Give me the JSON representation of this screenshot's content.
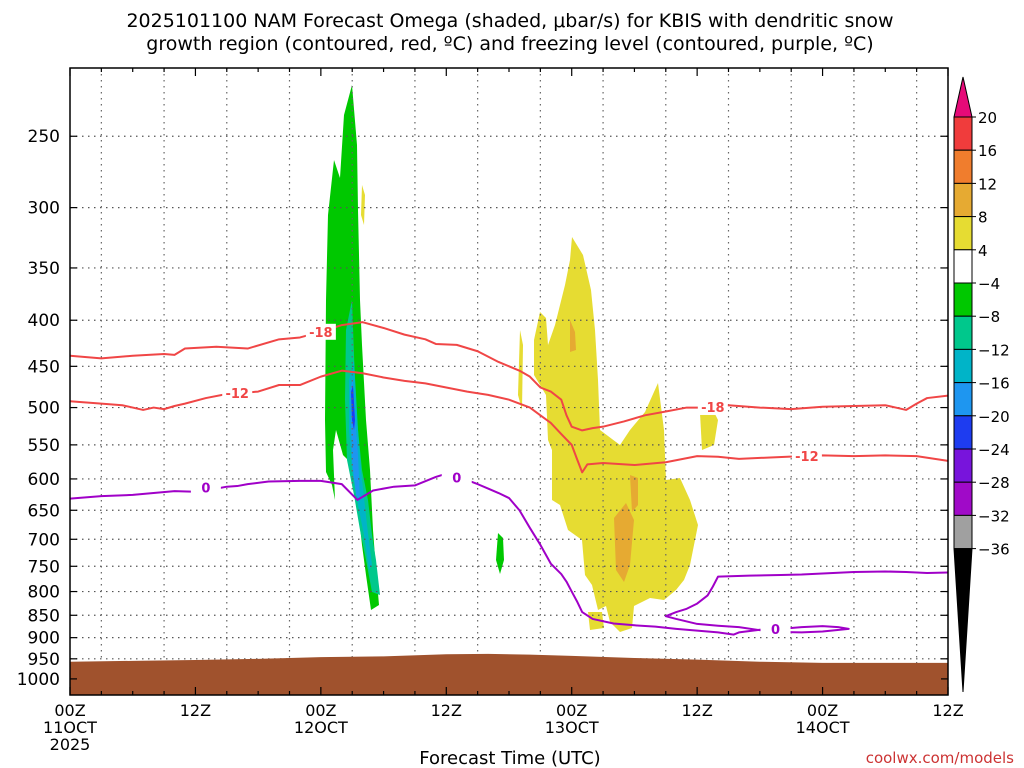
{
  "chart_data": {
    "type": "heatmap",
    "title": "2025101100 NAM Forecast Omega (shaded, μbar/s) for KBIS with dendritic snow",
    "subtitle": "growth region (contoured, red, ºC) and freezing level (contoured, purple, ºC)",
    "xlabel": "Forecast Time (UTC)",
    "credit": "coolwx.com/models",
    "x_ticks": [
      {
        "hour": 0,
        "line1": "00Z",
        "line2": "11OCT",
        "line3": "2025"
      },
      {
        "hour": 12,
        "line1": "12Z",
        "line2": "",
        "line3": ""
      },
      {
        "hour": 24,
        "line1": "00Z",
        "line2": "12OCT",
        "line3": ""
      },
      {
        "hour": 36,
        "line1": "12Z",
        "line2": "",
        "line3": ""
      },
      {
        "hour": 48,
        "line1": "00Z",
        "line2": "13OCT",
        "line3": ""
      },
      {
        "hour": 60,
        "line1": "12Z",
        "line2": "",
        "line3": ""
      },
      {
        "hour": 72,
        "line1": "00Z",
        "line2": "14OCT",
        "line3": ""
      },
      {
        "hour": 84,
        "line1": "12Z",
        "line2": "",
        "line3": ""
      }
    ],
    "xlim": [
      0,
      84
    ],
    "y_ticks": [
      250,
      300,
      350,
      400,
      450,
      500,
      550,
      600,
      650,
      700,
      750,
      800,
      850,
      900,
      950,
      1000
    ],
    "ylim": [
      200,
      1050
    ],
    "grid": true,
    "colorbar": {
      "labels": [
        "20",
        "16",
        "12",
        "8",
        "4",
        "−4",
        "−8",
        "−12",
        "−16",
        "−20",
        "−24",
        "−28",
        "−32",
        "−36"
      ],
      "colors": [
        "#e60a78",
        "#f03c3c",
        "#f07d2d",
        "#e6aa32",
        "#e6dc32",
        "#ffffff",
        "#00c800",
        "#00c88c",
        "#00b4c8",
        "#1e96f0",
        "#1e3cf0",
        "#7814dc",
        "#a00ac8",
        "#a0a0a0",
        "#000000"
      ]
    },
    "terrain_color": "#a0522d",
    "terrain": [
      [
        0,
        957
      ],
      [
        6,
        955
      ],
      [
        12,
        953
      ],
      [
        18,
        950
      ],
      [
        24,
        946
      ],
      [
        30,
        944
      ],
      [
        36,
        939
      ],
      [
        40,
        938
      ],
      [
        44,
        940
      ],
      [
        48,
        943
      ],
      [
        54,
        948
      ],
      [
        60,
        952
      ],
      [
        66,
        957
      ],
      [
        72,
        960
      ],
      [
        78,
        960
      ],
      [
        84,
        960
      ]
    ],
    "series": [
      {
        "name": "-18",
        "color": "#f04646",
        "label_hours": [
          24,
          61.5
        ],
        "points": [
          [
            0,
            438
          ],
          [
            3,
            441
          ],
          [
            6,
            438
          ],
          [
            9,
            436
          ],
          [
            10,
            437
          ],
          [
            11,
            430
          ],
          [
            14,
            428
          ],
          [
            17,
            430
          ],
          [
            20,
            420
          ],
          [
            22,
            418
          ],
          [
            24,
            412
          ],
          [
            26,
            405
          ],
          [
            28,
            402
          ],
          [
            30,
            408
          ],
          [
            32,
            415
          ],
          [
            34,
            420
          ],
          [
            35,
            425
          ],
          [
            37,
            426
          ],
          [
            39,
            433
          ],
          [
            41,
            445
          ],
          [
            43,
            455
          ],
          [
            44,
            462
          ],
          [
            45,
            475
          ],
          [
            46,
            480
          ],
          [
            47,
            490
          ],
          [
            47.5,
            510
          ],
          [
            48,
            525
          ],
          [
            49,
            530
          ],
          [
            50,
            527
          ],
          [
            51,
            525
          ],
          [
            53,
            518
          ],
          [
            55,
            510
          ],
          [
            57,
            505
          ],
          [
            59,
            500
          ],
          [
            61,
            500
          ],
          [
            63,
            497
          ],
          [
            66,
            500
          ],
          [
            69,
            502
          ],
          [
            72,
            499
          ],
          [
            75,
            498
          ],
          [
            78,
            497
          ],
          [
            79,
            500
          ],
          [
            80,
            503
          ],
          [
            81,
            495
          ],
          [
            82,
            488
          ],
          [
            84,
            485
          ]
        ]
      },
      {
        "name": "-12",
        "color": "#f04646",
        "label_hours": [
          16,
          70.5
        ],
        "points": [
          [
            0,
            492
          ],
          [
            3,
            495
          ],
          [
            5,
            497
          ],
          [
            7,
            503
          ],
          [
            8,
            500
          ],
          [
            9,
            502
          ],
          [
            10,
            498
          ],
          [
            11,
            495
          ],
          [
            13,
            488
          ],
          [
            15,
            483
          ],
          [
            18,
            480
          ],
          [
            20,
            472
          ],
          [
            22,
            472
          ],
          [
            24,
            462
          ],
          [
            26,
            455
          ],
          [
            28,
            458
          ],
          [
            30,
            463
          ],
          [
            32,
            467
          ],
          [
            34,
            470
          ],
          [
            36,
            475
          ],
          [
            38,
            480
          ],
          [
            40,
            484
          ],
          [
            42,
            490
          ],
          [
            44,
            500
          ],
          [
            45,
            510
          ],
          [
            46,
            520
          ],
          [
            47,
            535
          ],
          [
            48,
            550
          ],
          [
            48.5,
            570
          ],
          [
            49,
            590
          ],
          [
            49.5,
            578
          ],
          [
            51,
            576
          ],
          [
            54,
            579
          ],
          [
            57,
            575
          ],
          [
            60,
            566
          ],
          [
            62,
            567
          ],
          [
            64,
            570
          ],
          [
            67,
            568
          ],
          [
            70,
            566
          ],
          [
            72,
            565
          ],
          [
            75,
            566
          ],
          [
            78,
            565
          ],
          [
            81,
            566
          ],
          [
            84,
            573
          ]
        ]
      },
      {
        "name": "0",
        "color": "#a000c8",
        "label_hours": [
          13,
          37,
          67.5
        ],
        "points": [
          [
            0,
            631
          ],
          [
            3,
            627
          ],
          [
            6,
            625
          ],
          [
            8,
            622
          ],
          [
            10,
            619
          ],
          [
            12,
            620
          ],
          [
            13,
            613
          ],
          [
            14,
            615
          ],
          [
            15,
            612
          ],
          [
            16,
            611
          ],
          [
            17,
            608
          ],
          [
            19,
            604
          ],
          [
            22,
            603
          ],
          [
            24,
            603
          ],
          [
            26,
            608
          ],
          [
            27.5,
            633
          ],
          [
            29,
            618
          ],
          [
            31,
            612
          ],
          [
            33,
            610
          ],
          [
            35,
            597
          ],
          [
            36,
            592
          ],
          [
            37,
            598
          ],
          [
            38,
            602
          ],
          [
            39,
            608
          ],
          [
            40,
            615
          ],
          [
            41,
            622
          ],
          [
            42,
            630
          ],
          [
            43,
            650
          ],
          [
            44,
            680
          ],
          [
            45,
            710
          ],
          [
            46,
            745
          ],
          [
            47,
            765
          ],
          [
            47.5,
            780
          ],
          [
            48,
            800
          ],
          [
            48.5,
            820
          ],
          [
            49,
            843
          ],
          [
            50,
            858
          ],
          [
            52,
            868
          ],
          [
            54,
            872
          ],
          [
            56,
            875
          ],
          [
            58,
            880
          ],
          [
            60,
            884
          ],
          [
            62,
            888
          ],
          [
            63.5,
            893
          ],
          [
            64,
            888
          ],
          [
            66,
            882
          ],
          [
            68,
            880
          ],
          [
            70,
            876
          ],
          [
            72,
            874
          ],
          [
            73.5,
            876
          ],
          [
            74.5,
            880
          ],
          [
            72,
            886
          ],
          [
            70,
            888
          ],
          [
            68,
            887
          ],
          [
            66,
            883
          ],
          [
            64,
            876
          ],
          [
            62,
            873
          ],
          [
            60,
            869
          ],
          [
            58,
            858
          ],
          [
            57,
            852
          ],
          [
            58,
            843
          ],
          [
            59,
            836
          ],
          [
            60,
            825
          ],
          [
            61,
            808
          ],
          [
            61.5,
            790
          ],
          [
            62,
            770
          ],
          [
            65,
            768
          ],
          [
            68,
            767
          ],
          [
            70,
            766
          ],
          [
            72,
            764
          ],
          [
            75,
            761
          ],
          [
            78,
            760
          ],
          [
            80,
            761
          ],
          [
            82,
            763
          ],
          [
            84,
            762
          ]
        ]
      }
    ]
  }
}
